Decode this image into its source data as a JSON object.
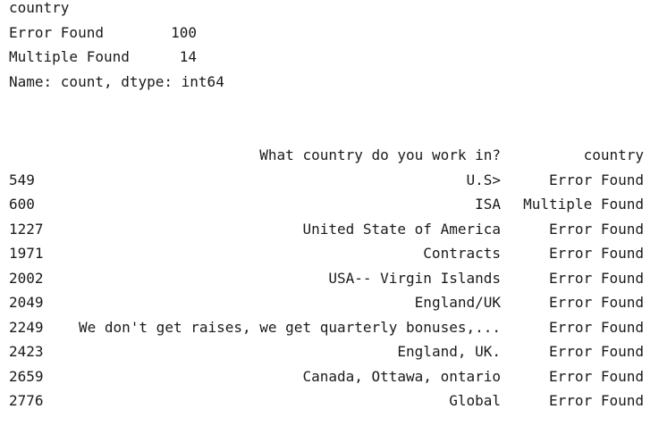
{
  "series": {
    "name": "country",
    "rows": [
      {
        "label": "Error Found",
        "value": "100"
      },
      {
        "label": "Multiple Found",
        "value": "14"
      }
    ],
    "footer": "Name: count, dtype: int64"
  },
  "dataframe": {
    "headers": [
      "",
      "What country do you work in?",
      "country"
    ],
    "rows": [
      {
        "index": "549",
        "answer": "U.S>",
        "country": "Error Found"
      },
      {
        "index": "600",
        "answer": "ISA",
        "country": "Multiple Found"
      },
      {
        "index": "1227",
        "answer": "United State of America",
        "country": "Error Found"
      },
      {
        "index": "1971",
        "answer": "Contracts",
        "country": "Error Found"
      },
      {
        "index": "2002",
        "answer": "USA-- Virgin Islands",
        "country": "Error Found"
      },
      {
        "index": "2049",
        "answer": "England/UK",
        "country": "Error Found"
      },
      {
        "index": "2249",
        "answer": "We don't get raises, we get quarterly bonuses,...",
        "country": "Error Found"
      },
      {
        "index": "2423",
        "answer": "England, UK.",
        "country": "Error Found"
      },
      {
        "index": "2659",
        "answer": "Canada, Ottawa, ontario",
        "country": "Error Found"
      },
      {
        "index": "2776",
        "answer": "Global",
        "country": "Error Found"
      }
    ]
  }
}
